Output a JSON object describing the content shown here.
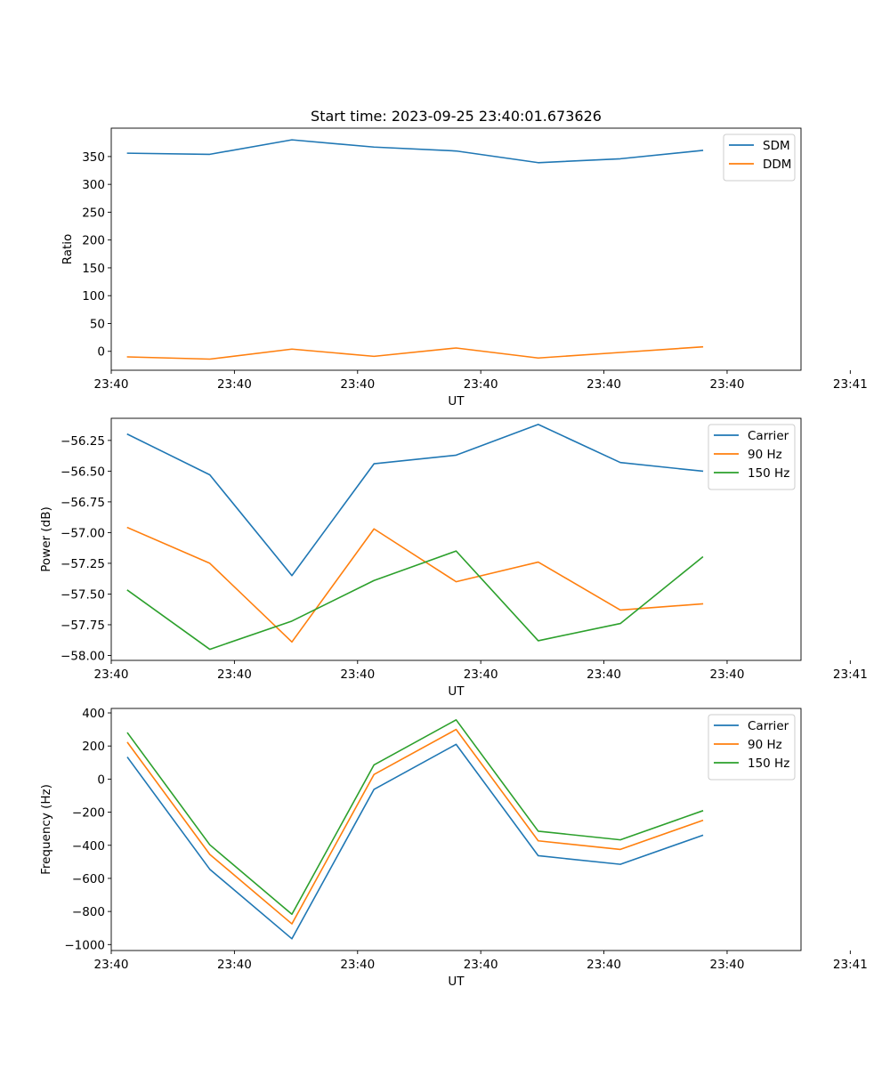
{
  "figure_title": "Start time: 2023-09-25 23:40:01.673626",
  "chart_data": [
    {
      "type": "line",
      "title": "Start time: 2023-09-25 23:40:01.673626",
      "xlabel": "UT",
      "ylabel": "Ratio",
      "x": [
        1,
        2,
        3,
        4,
        5,
        6,
        7,
        8
      ],
      "xlim": [
        0.8,
        9.2
      ],
      "xticks": [
        0.8,
        2.3,
        3.8,
        5.3,
        6.8,
        8.3,
        9.8
      ],
      "xtick_labels": [
        "23:40",
        "23:40",
        "23:40",
        "23:40",
        "23:40",
        "23:40",
        "23:41"
      ],
      "ylim": [
        -34,
        401
      ],
      "yticks": [
        0,
        50,
        100,
        150,
        200,
        250,
        300,
        350
      ],
      "ytick_labels": [
        "0",
        "50",
        "100",
        "150",
        "200",
        "250",
        "300",
        "350"
      ],
      "series": [
        {
          "name": "SDM",
          "color": "#1f77b4",
          "values": [
            356,
            354,
            380,
            367,
            360,
            339,
            346,
            361
          ]
        },
        {
          "name": "DDM",
          "color": "#ff7f0e",
          "values": [
            -10,
            -14,
            4,
            -9,
            6,
            -12,
            -2,
            8
          ]
        }
      ]
    },
    {
      "type": "line",
      "title": "",
      "xlabel": "UT",
      "ylabel": "Power (dB)",
      "x": [
        1,
        2,
        3,
        4,
        5,
        6,
        7,
        8
      ],
      "xlim": [
        0.8,
        9.2
      ],
      "xticks": [
        0.8,
        2.3,
        3.8,
        5.3,
        6.8,
        8.3,
        9.8
      ],
      "xtick_labels": [
        "23:40",
        "23:40",
        "23:40",
        "23:40",
        "23:40",
        "23:40",
        "23:41"
      ],
      "ylim": [
        -58.04,
        -56.07
      ],
      "yticks": [
        -58.0,
        -57.75,
        -57.5,
        -57.25,
        -57.0,
        -56.75,
        -56.5,
        -56.25
      ],
      "ytick_labels": [
        "−58.00",
        "−57.75",
        "−57.50",
        "−57.25",
        "−57.00",
        "−56.75",
        "−56.50",
        "−56.25"
      ],
      "series": [
        {
          "name": "Carrier",
          "color": "#1f77b4",
          "values": [
            -56.2,
            -56.53,
            -57.35,
            -56.44,
            -56.37,
            -56.12,
            -56.43,
            -56.5
          ]
        },
        {
          "name": "90 Hz",
          "color": "#ff7f0e",
          "values": [
            -56.96,
            -57.25,
            -57.89,
            -56.97,
            -57.4,
            -57.24,
            -57.63,
            -57.58
          ]
        },
        {
          "name": "150 Hz",
          "color": "#2ca02c",
          "values": [
            -57.47,
            -57.95,
            -57.72,
            -57.39,
            -57.15,
            -57.88,
            -57.74,
            -57.2
          ]
        }
      ]
    },
    {
      "type": "line",
      "title": "",
      "xlabel": "UT",
      "ylabel": "Frequency (Hz)",
      "x": [
        1,
        2,
        3,
        4,
        5,
        6,
        7,
        8
      ],
      "xlim": [
        0.8,
        9.2
      ],
      "xticks": [
        0.8,
        2.3,
        3.8,
        5.3,
        6.8,
        8.3,
        9.8
      ],
      "xtick_labels": [
        "23:40",
        "23:40",
        "23:40",
        "23:40",
        "23:40",
        "23:40",
        "23:41"
      ],
      "ylim": [
        -1036,
        427
      ],
      "yticks": [
        -1000,
        -800,
        -600,
        -400,
        -200,
        0,
        200,
        400
      ],
      "ytick_labels": [
        "−1000",
        "−800",
        "−600",
        "−400",
        "−200",
        "0",
        "200",
        "400"
      ],
      "series": [
        {
          "name": "Carrier",
          "color": "#1f77b4",
          "values": [
            130,
            -545,
            -965,
            -62,
            210,
            -463,
            -515,
            -340
          ]
        },
        {
          "name": "90 Hz",
          "color": "#ff7f0e",
          "values": [
            220,
            -455,
            -875,
            28,
            300,
            -373,
            -425,
            -250
          ]
        },
        {
          "name": "150 Hz",
          "color": "#2ca02c",
          "values": [
            278,
            -397,
            -817,
            86,
            358,
            -315,
            -367,
            -192
          ]
        }
      ]
    }
  ]
}
